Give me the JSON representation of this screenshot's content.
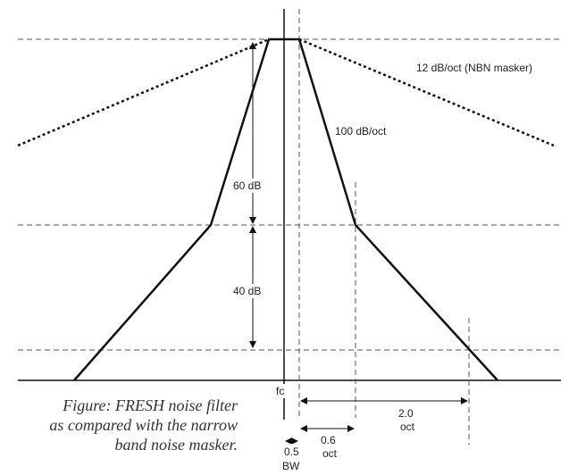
{
  "labels": {
    "slope_nbn": "12 dB/oct (NBN masker)",
    "slope_fresh": "100 dB/oct",
    "level_upper": "60 dB",
    "level_lower": "40 dB",
    "fc": "fc",
    "width_half": "0.5",
    "width_half_unit": "BW",
    "oct_short": "0.6",
    "oct_short_unit": "oct",
    "oct_long": "2.0",
    "oct_long_unit": "oct"
  },
  "caption": {
    "line1": "Figure: FRESH noise filter",
    "line2": "as compared with the narrow",
    "line3": "band noise masker."
  }
}
